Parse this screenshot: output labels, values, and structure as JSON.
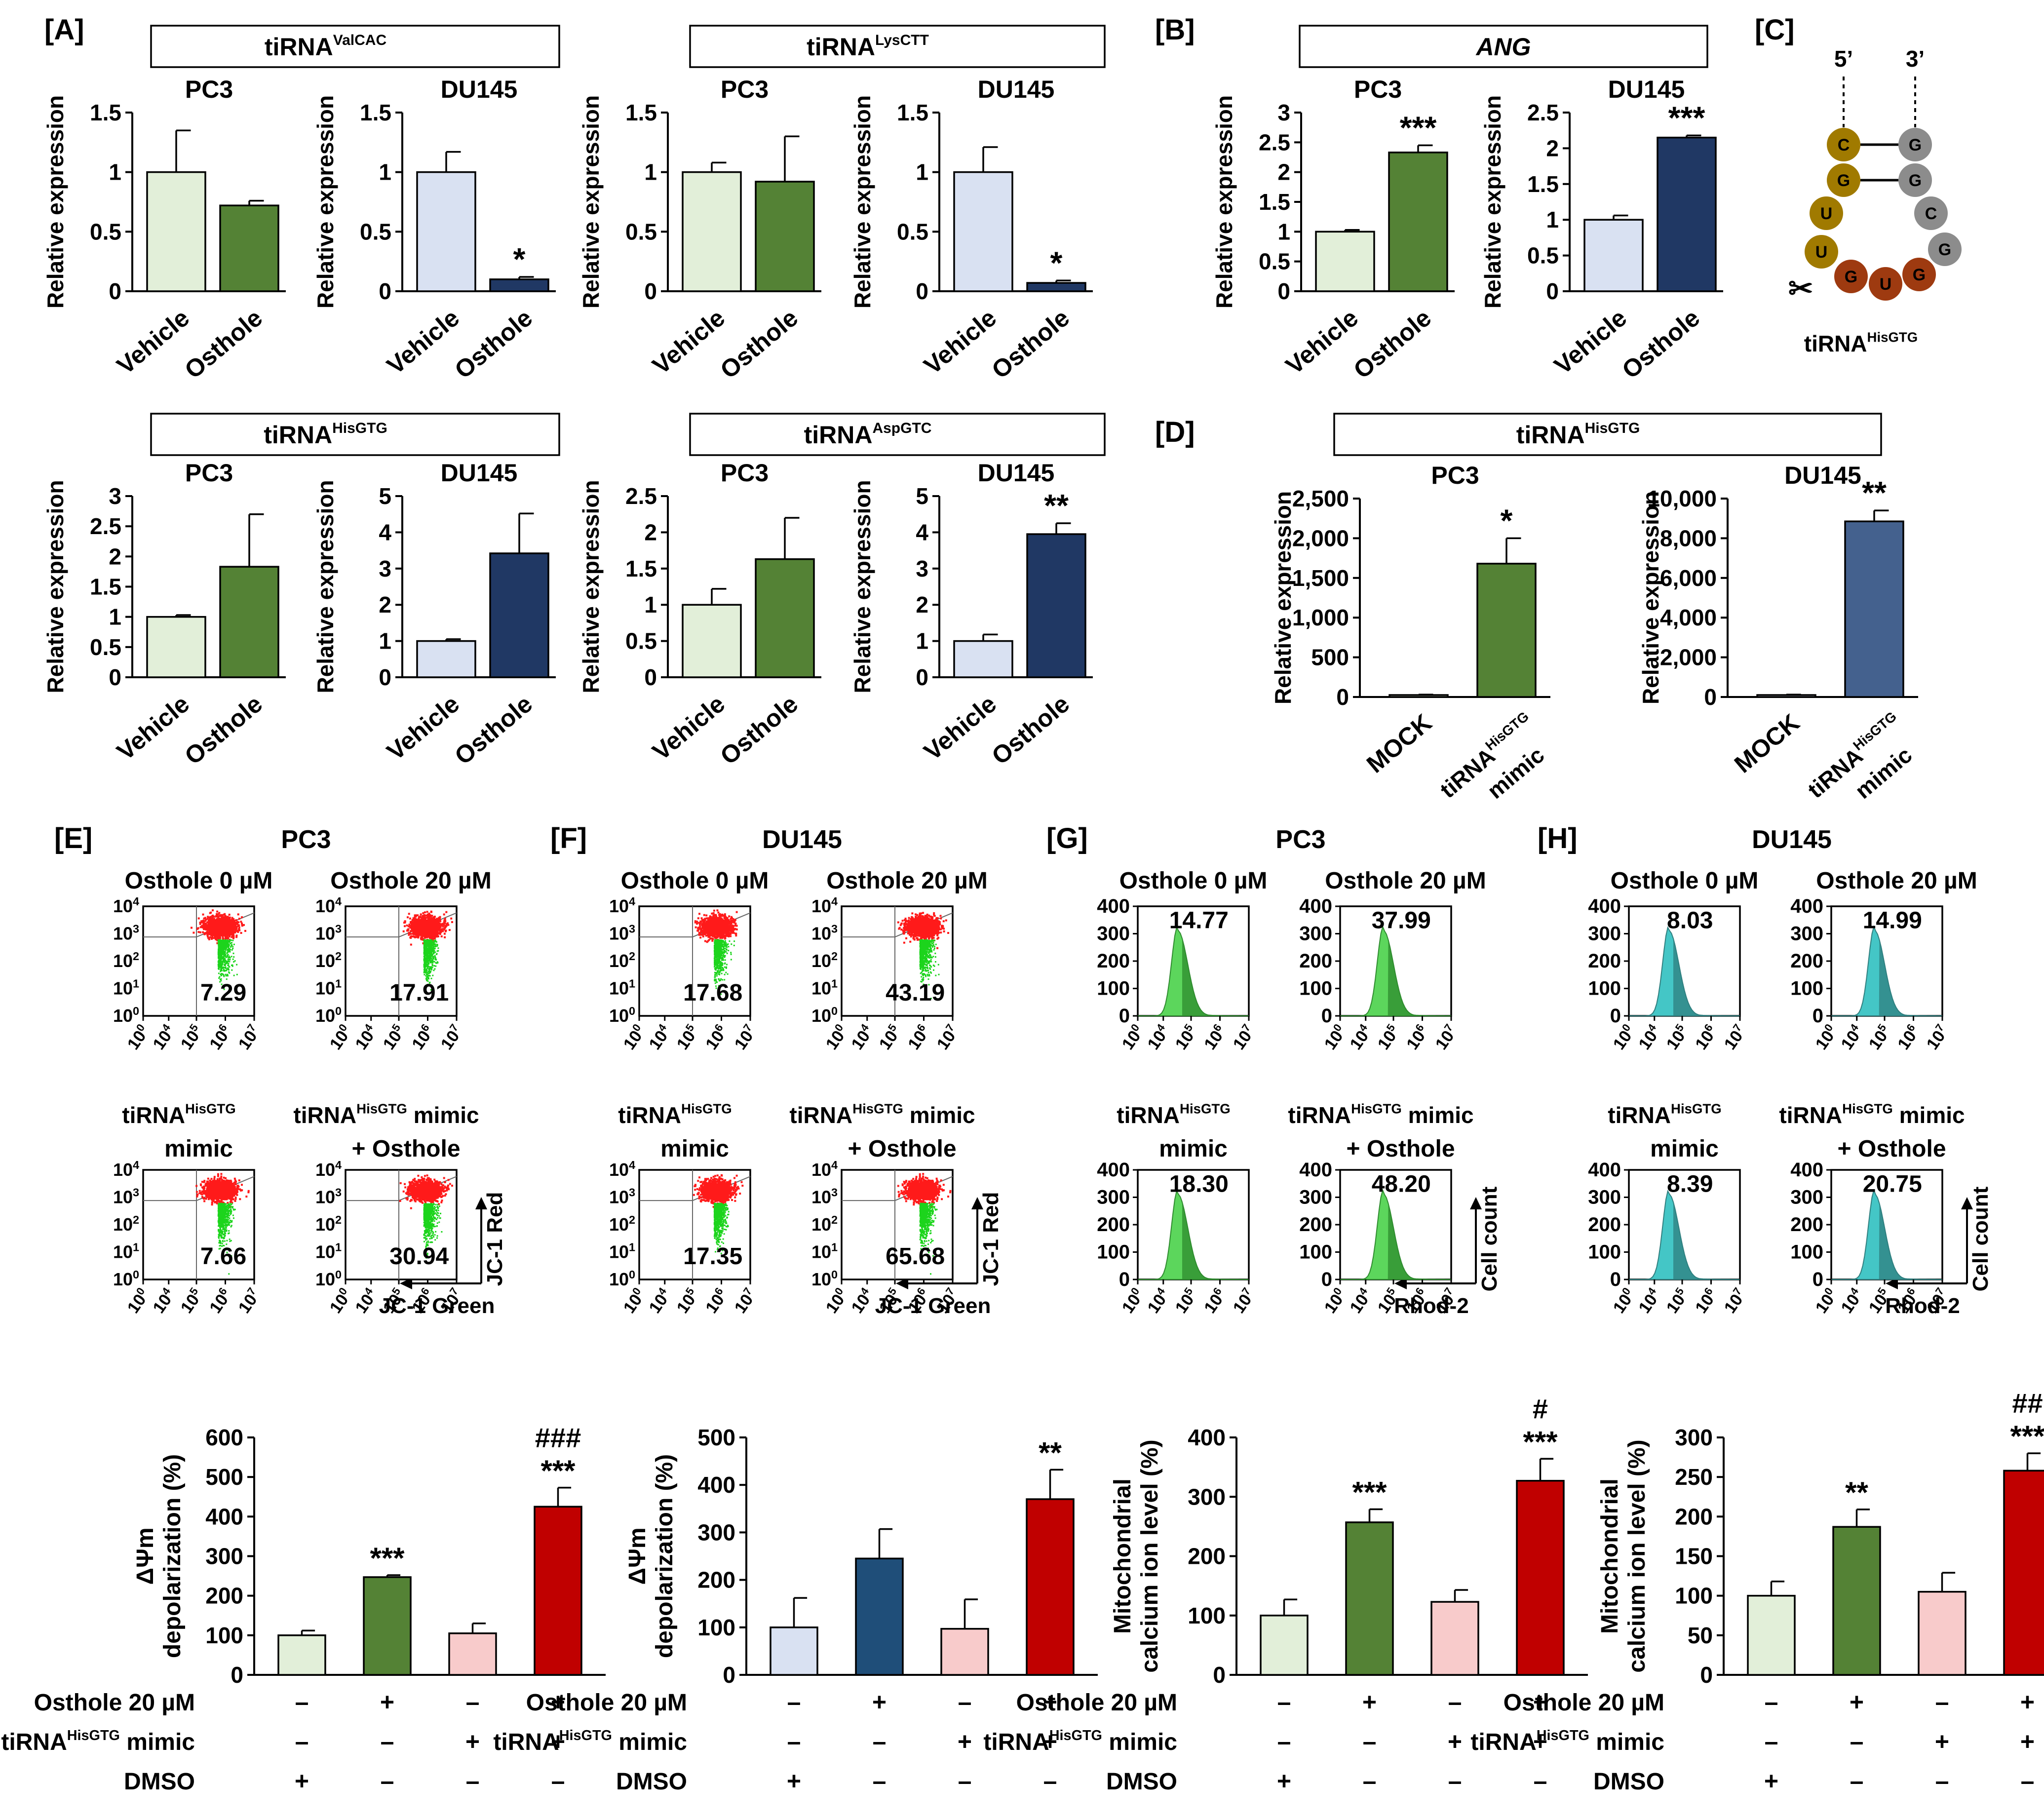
{
  "colors": {
    "vehicle_green": "#E2EFD9",
    "osthole_green": "#548235",
    "vehicle_blue": "#D9E1F2",
    "osthole_navy": "#203864",
    "mimic_blue": "#44618E",
    "du_bar_blue": "#1F4E79",
    "mimic_pink": "#F8CBCB",
    "combo_red": "#C00000",
    "scatter_red": "#FF1A1A",
    "scatter_green": "#1CD41C",
    "hist_green": "#5CD65C",
    "hist_dark_green": "#2E8B2E",
    "hist_cyan": "#44C6C6",
    "hist_dark_cyan": "#2F7F7F",
    "num_green": "#4EA06B",
    "num_blue": "#4A6A9E",
    "base_gold": "#A07A00",
    "base_brown": "#9E3A10",
    "base_grey": "#8C8C8C"
  },
  "panel_labels": {
    "A": "[A]",
    "B": "[B]",
    "C": "[C]",
    "D": "[D]",
    "E": "[E]",
    "F": "[F]",
    "G": "[G]",
    "H": "[H]"
  },
  "boxes": {
    "valcac": {
      "main": "tiRNA",
      "sup": "ValCAC"
    },
    "lyscctt": {
      "main": "tiRNA",
      "sup": "LysCTT"
    },
    "ang": "ANG",
    "hisgtg": {
      "main": "tiRNA",
      "sup": "HisGTG"
    },
    "aspgtc": {
      "main": "tiRNA",
      "sup": "AspGTC"
    },
    "d_hisgtg": {
      "main": "tiRNA",
      "sup": "HisGTG"
    }
  },
  "structure": {
    "five_prime": "5’",
    "three_prime": "3’",
    "left_bases": [
      "C",
      "G",
      "U",
      "U"
    ],
    "right_bases": [
      "G",
      "G",
      "C",
      "G"
    ],
    "loop_bases": [
      "G",
      "U",
      "G"
    ],
    "scissors": "✂",
    "label_main": "tiRNA",
    "label_sup": "HisGTG"
  },
  "common": {
    "ylabel": "Relative expression",
    "vehicle": "Vehicle",
    "osthole": "Osthole",
    "mock": "MOCK",
    "mimic_main": "tiRNA",
    "mimic_sup": "HisGTG",
    "mimic_word": "mimic",
    "pc3": "PC3",
    "du145": "DU145"
  },
  "chart_data": [
    {
      "id": "A1",
      "type": "bar",
      "title": "PC3",
      "categories": [
        "Vehicle",
        "Osthole"
      ],
      "values": [
        1.0,
        0.72
      ],
      "errors": [
        0.35,
        0.04
      ],
      "ylim": [
        0,
        1.5
      ],
      "yticks": [
        0,
        0.5,
        1,
        1.5
      ],
      "ytick_labels": [
        "0",
        "0.5",
        "1",
        "1.5"
      ],
      "ylabel": "Relative expression",
      "sig": [
        "",
        ""
      ]
    },
    {
      "id": "A2",
      "type": "bar",
      "title": "DU145",
      "categories": [
        "Vehicle",
        "Osthole"
      ],
      "values": [
        1.0,
        0.1
      ],
      "errors": [
        0.17,
        0.02
      ],
      "ylim": [
        0,
        1.5
      ],
      "yticks": [
        0,
        0.5,
        1,
        1.5
      ],
      "ytick_labels": [
        "0",
        "0.5",
        "1",
        "1.5"
      ],
      "ylabel": "Relative expression",
      "sig": [
        "",
        "*"
      ]
    },
    {
      "id": "A3",
      "type": "bar",
      "title": "PC3",
      "categories": [
        "Vehicle",
        "Osthole"
      ],
      "values": [
        1.0,
        0.92
      ],
      "errors": [
        0.08,
        0.38
      ],
      "ylim": [
        0,
        1.5
      ],
      "yticks": [
        0,
        0.5,
        1,
        1.5
      ],
      "ytick_labels": [
        "0",
        "0.5",
        "1",
        "1.5"
      ],
      "ylabel": "Relative expression",
      "sig": [
        "",
        ""
      ]
    },
    {
      "id": "A4",
      "type": "bar",
      "title": "DU145",
      "categories": [
        "Vehicle",
        "Osthole"
      ],
      "values": [
        1.0,
        0.07
      ],
      "errors": [
        0.21,
        0.02
      ],
      "ylim": [
        0,
        1.5
      ],
      "yticks": [
        0,
        0.5,
        1,
        1.5
      ],
      "ytick_labels": [
        "0",
        "0.5",
        "1",
        "1.5"
      ],
      "ylabel": "Relative expression",
      "sig": [
        "",
        "*"
      ]
    },
    {
      "id": "B1",
      "type": "bar",
      "title": "PC3",
      "categories": [
        "Vehicle",
        "Osthole"
      ],
      "values": [
        1.0,
        2.33
      ],
      "errors": [
        0.03,
        0.12
      ],
      "ylim": [
        0,
        3
      ],
      "yticks": [
        0,
        0.5,
        1,
        1.5,
        2,
        2.5,
        3
      ],
      "ytick_labels": [
        "0",
        "0.5",
        "1",
        "1.5",
        "2",
        "2.5",
        "3"
      ],
      "ylabel": "Relative expression",
      "sig": [
        "",
        "***"
      ]
    },
    {
      "id": "B2",
      "type": "bar",
      "title": "DU145",
      "categories": [
        "Vehicle",
        "Osthole"
      ],
      "values": [
        1.0,
        2.15
      ],
      "errors": [
        0.06,
        0.03
      ],
      "ylim": [
        0,
        2.5
      ],
      "yticks": [
        0,
        0.5,
        1,
        1.5,
        2,
        2.5
      ],
      "ytick_labels": [
        "0",
        "0.5",
        "1",
        "1.5",
        "2",
        "2.5"
      ],
      "ylabel": "Relative expression",
      "sig": [
        "",
        "***"
      ]
    },
    {
      "id": "A5",
      "type": "bar",
      "title": "PC3",
      "categories": [
        "Vehicle",
        "Osthole"
      ],
      "values": [
        1.0,
        1.83
      ],
      "errors": [
        0.03,
        0.87
      ],
      "ylim": [
        0,
        3
      ],
      "yticks": [
        0,
        0.5,
        1,
        1.5,
        2,
        2.5,
        3
      ],
      "ytick_labels": [
        "0",
        "0.5",
        "1",
        "1.5",
        "2",
        "2.5",
        "3"
      ],
      "ylabel": "Relative expression",
      "sig": [
        "",
        ""
      ]
    },
    {
      "id": "A6",
      "type": "bar",
      "title": "DU145",
      "categories": [
        "Vehicle",
        "Osthole"
      ],
      "values": [
        1.0,
        3.42
      ],
      "errors": [
        0.05,
        1.1
      ],
      "ylim": [
        0,
        5
      ],
      "yticks": [
        0,
        1,
        2,
        3,
        4,
        5
      ],
      "ytick_labels": [
        "0",
        "1",
        "2",
        "3",
        "4",
        "5"
      ],
      "ylabel": "Relative expression",
      "sig": [
        "",
        ""
      ]
    },
    {
      "id": "A7",
      "type": "bar",
      "title": "PC3",
      "categories": [
        "Vehicle",
        "Osthole"
      ],
      "values": [
        1.0,
        1.63
      ],
      "errors": [
        0.22,
        0.57
      ],
      "ylim": [
        0,
        2.5
      ],
      "yticks": [
        0,
        0.5,
        1,
        1.5,
        2,
        2.5
      ],
      "ytick_labels": [
        "0",
        "0.5",
        "1",
        "1.5",
        "2",
        "2.5"
      ],
      "ylabel": "Relative expression",
      "sig": [
        "",
        ""
      ]
    },
    {
      "id": "A8",
      "type": "bar",
      "title": "DU145",
      "categories": [
        "Vehicle",
        "Osthole"
      ],
      "values": [
        1.0,
        3.95
      ],
      "errors": [
        0.18,
        0.3
      ],
      "ylim": [
        0,
        5
      ],
      "yticks": [
        0,
        1,
        2,
        3,
        4,
        5
      ],
      "ytick_labels": [
        "0",
        "1",
        "2",
        "3",
        "4",
        "5"
      ],
      "ylabel": "Relative expression",
      "sig": [
        "",
        "**"
      ]
    },
    {
      "id": "D1",
      "type": "bar",
      "title": "PC3",
      "categories": [
        "MOCK",
        "tiRNA HisGTG mimic"
      ],
      "values": [
        25,
        1680
      ],
      "errors": [
        5,
        320
      ],
      "ylim": [
        0,
        2500
      ],
      "yticks": [
        0,
        500,
        1000,
        1500,
        2000,
        2500
      ],
      "ytick_labels": [
        "0",
        "500",
        "1,000",
        "1,500",
        "2,000",
        "2,500"
      ],
      "ylabel": "Relative expression",
      "sig": [
        "",
        "*"
      ]
    },
    {
      "id": "D2",
      "type": "bar",
      "title": "DU145",
      "categories": [
        "MOCK",
        "tiRNA HisGTG mimic"
      ],
      "values": [
        100,
        8850
      ],
      "errors": [
        20,
        550
      ],
      "ylim": [
        0,
        10000
      ],
      "yticks": [
        0,
        2000,
        4000,
        6000,
        8000,
        10000
      ],
      "ytick_labels": [
        "0",
        "2,000",
        "4,000",
        "6,000",
        "8,000",
        "10,000"
      ],
      "ylabel": "Relative expression",
      "sig": [
        "",
        "**"
      ]
    },
    {
      "id": "E",
      "type": "bar",
      "title": "",
      "categories": [
        "DMSO",
        "Osthole 20 µM",
        "tiRNA HisGTG mimic",
        "Osthole + mimic"
      ],
      "values": [
        100,
        247,
        105,
        425
      ],
      "errors": [
        12,
        5,
        25,
        48
      ],
      "ylim": [
        0,
        600
      ],
      "yticks": [
        0,
        100,
        200,
        300,
        400,
        500,
        600
      ],
      "ytick_labels": [
        "0",
        "100",
        "200",
        "300",
        "400",
        "500",
        "600"
      ],
      "ylabel": "ΔΨm depolarization (%)",
      "sig": [
        "",
        "***",
        "",
        "***"
      ],
      "sig2": [
        "",
        "",
        "",
        "###"
      ]
    },
    {
      "id": "F",
      "type": "bar",
      "title": "",
      "categories": [
        "DMSO",
        "Osthole 20 µM",
        "tiRNA HisGTG mimic",
        "Osthole + mimic"
      ],
      "values": [
        100,
        245,
        97,
        370
      ],
      "errors": [
        62,
        62,
        62,
        62
      ],
      "ylim": [
        0,
        500
      ],
      "yticks": [
        0,
        100,
        200,
        300,
        400,
        500
      ],
      "ytick_labels": [
        "0",
        "100",
        "200",
        "300",
        "400",
        "500"
      ],
      "ylabel": "ΔΨm depolarization (%)",
      "sig": [
        "",
        "",
        "",
        "**"
      ],
      "sig2": [
        "",
        "",
        "",
        ""
      ]
    },
    {
      "id": "G",
      "type": "bar",
      "title": "",
      "categories": [
        "DMSO",
        "Osthole 20 µM",
        "tiRNA HisGTG mimic",
        "Osthole + mimic"
      ],
      "values": [
        100,
        257,
        123,
        327
      ],
      "errors": [
        27,
        22,
        20,
        37
      ],
      "ylim": [
        0,
        400
      ],
      "yticks": [
        0,
        100,
        200,
        300,
        400
      ],
      "ytick_labels": [
        "0",
        "100",
        "200",
        "300",
        "400"
      ],
      "ylabel": "Mitochondrial calcium ion level (%)",
      "sig": [
        "",
        "***",
        "",
        "***"
      ],
      "sig2": [
        "",
        "",
        "",
        "#"
      ]
    },
    {
      "id": "H",
      "type": "bar",
      "title": "",
      "categories": [
        "DMSO",
        "Osthole 20 µM",
        "tiRNA HisGTG mimic",
        "Osthole + mimic"
      ],
      "values": [
        100,
        187,
        105,
        258
      ],
      "errors": [
        18,
        22,
        24,
        22
      ],
      "ylim": [
        0,
        300
      ],
      "yticks": [
        0,
        50,
        100,
        150,
        200,
        250,
        300
      ],
      "ytick_labels": [
        "0",
        "50",
        "100",
        "150",
        "200",
        "250",
        "300"
      ],
      "ylabel": "Mitochondrial calcium ion level (%)",
      "sig": [
        "",
        "**",
        "",
        "***"
      ],
      "sig2": [
        "",
        "",
        "",
        "##"
      ]
    }
  ],
  "flow": {
    "E": {
      "title": "PC3",
      "xlabel": "JC-1 Green",
      "ylabel": "JC-1 Red",
      "plots": [
        {
          "label": "Osthole 0 µM",
          "value": "7.29"
        },
        {
          "label": "Osthole 20 µM",
          "value": "17.91"
        },
        {
          "label": "tiRNA HisGTG mimic",
          "value": "7.66"
        },
        {
          "label": "tiRNA HisGTG mimic + Osthole",
          "value": "30.94"
        }
      ]
    },
    "F": {
      "title": "DU145",
      "xlabel": "JC-1 Green",
      "ylabel": "JC-1 Red",
      "plots": [
        {
          "label": "Osthole 0 µM",
          "value": "17.68"
        },
        {
          "label": "Osthole 20 µM",
          "value": "43.19"
        },
        {
          "label": "tiRNA HisGTG mimic",
          "value": "17.35"
        },
        {
          "label": "tiRNA HisGTG mimic + Osthole",
          "value": "65.68"
        }
      ]
    },
    "G": {
      "title": "PC3",
      "xlabel": "Rhod-2",
      "ylabel": "Cell count",
      "plots": [
        {
          "label": "Osthole 0 µM",
          "value": "14.77"
        },
        {
          "label": "Osthole 20 µM",
          "value": "37.99"
        },
        {
          "label": "tiRNA HisGTG mimic",
          "value": "18.30"
        },
        {
          "label": "tiRNA HisGTG mimic + Osthole",
          "value": "48.20"
        }
      ]
    },
    "H": {
      "title": "DU145",
      "xlabel": "Rhod-2",
      "ylabel": "Cell count",
      "plots": [
        {
          "label": "Osthole 0 µM",
          "value": "8.03"
        },
        {
          "label": "Osthole 20 µM",
          "value": "14.99"
        },
        {
          "label": "tiRNA HisGTG mimic",
          "value": "8.39"
        },
        {
          "label": "tiRNA HisGTG mimic + Osthole",
          "value": "20.75"
        }
      ]
    }
  },
  "flow_labels": {
    "osthole0": "Osthole 0 µM",
    "osthole20": "Osthole 20 µM",
    "mimic_tail": " mimic",
    "mimic_word": "mimic",
    "plus_osthole": "+ Osthole",
    "decade_base": "10",
    "scatter_y_exps": [
      "4",
      "3",
      "2",
      "1",
      "0"
    ],
    "x_exps": [
      "0",
      "4",
      "5",
      "6",
      "7"
    ],
    "hist_yticks": [
      "400",
      "300",
      "200",
      "100",
      "0"
    ]
  },
  "treatment_table": {
    "rows": [
      {
        "label": "Osthole 20 µM",
        "marks": [
          "–",
          "+",
          "–",
          "+"
        ]
      },
      {
        "label_main": "tiRNA",
        "label_sup": "HisGTG",
        "label_tail": " mimic",
        "marks": [
          "–",
          "–",
          "+",
          "+"
        ]
      },
      {
        "label": "DMSO",
        "marks": [
          "+",
          "–",
          "–",
          "–"
        ]
      }
    ]
  }
}
